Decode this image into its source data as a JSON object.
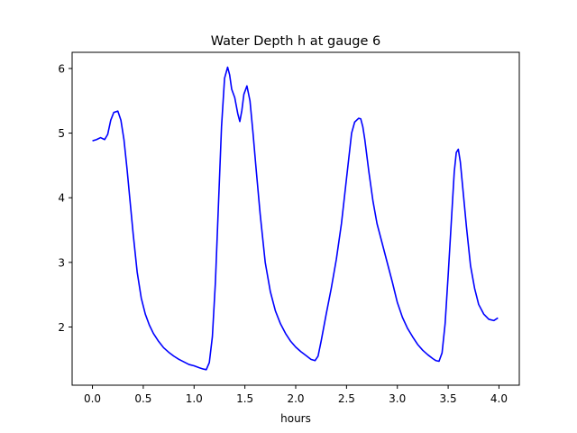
{
  "chart_data": {
    "type": "line",
    "title": "Water Depth h at gauge 6",
    "xlabel": "hours",
    "ylabel": "",
    "xlim": [
      -0.2,
      4.2
    ],
    "ylim": [
      1.1,
      6.25
    ],
    "xticks": [
      0.0,
      0.5,
      1.0,
      1.5,
      2.0,
      2.5,
      3.0,
      3.5,
      4.0
    ],
    "xtick_labels": [
      "0.0",
      "0.5",
      "1.0",
      "1.5",
      "2.0",
      "2.5",
      "3.0",
      "3.5",
      "4.0"
    ],
    "yticks": [
      2,
      3,
      4,
      5,
      6
    ],
    "ytick_labels": [
      "2",
      "3",
      "4",
      "5",
      "6"
    ],
    "grid": false,
    "series": [
      {
        "color": "#0000ff",
        "x": [
          0.0,
          0.04,
          0.08,
          0.12,
          0.15,
          0.18,
          0.21,
          0.25,
          0.28,
          0.31,
          0.34,
          0.37,
          0.4,
          0.44,
          0.48,
          0.52,
          0.56,
          0.6,
          0.65,
          0.7,
          0.75,
          0.8,
          0.85,
          0.9,
          0.95,
          1.0,
          1.05,
          1.09,
          1.12,
          1.15,
          1.18,
          1.21,
          1.24,
          1.27,
          1.3,
          1.33,
          1.35,
          1.37,
          1.4,
          1.43,
          1.45,
          1.47,
          1.49,
          1.52,
          1.55,
          1.58,
          1.61,
          1.65,
          1.7,
          1.75,
          1.8,
          1.85,
          1.9,
          1.95,
          2.0,
          2.05,
          2.1,
          2.15,
          2.19,
          2.22,
          2.25,
          2.3,
          2.35,
          2.4,
          2.45,
          2.5,
          2.55,
          2.58,
          2.6,
          2.62,
          2.64,
          2.66,
          2.68,
          2.72,
          2.76,
          2.8,
          2.85,
          2.9,
          2.95,
          3.0,
          3.05,
          3.1,
          3.15,
          3.2,
          3.25,
          3.3,
          3.35,
          3.38,
          3.41,
          3.44,
          3.47,
          3.5,
          3.53,
          3.56,
          3.58,
          3.6,
          3.62,
          3.65,
          3.68,
          3.72,
          3.76,
          3.8,
          3.85,
          3.9,
          3.95,
          3.99
        ],
        "y": [
          4.88,
          4.9,
          4.93,
          4.9,
          4.98,
          5.2,
          5.32,
          5.34,
          5.2,
          4.9,
          4.45,
          3.95,
          3.45,
          2.85,
          2.45,
          2.2,
          2.03,
          1.9,
          1.78,
          1.68,
          1.61,
          1.55,
          1.5,
          1.46,
          1.42,
          1.4,
          1.37,
          1.35,
          1.34,
          1.45,
          1.85,
          2.7,
          3.9,
          5.1,
          5.85,
          6.02,
          5.9,
          5.68,
          5.55,
          5.3,
          5.18,
          5.35,
          5.6,
          5.73,
          5.5,
          5.0,
          4.45,
          3.75,
          3.0,
          2.55,
          2.25,
          2.05,
          1.9,
          1.78,
          1.69,
          1.62,
          1.56,
          1.5,
          1.48,
          1.55,
          1.78,
          2.2,
          2.6,
          3.05,
          3.6,
          4.3,
          5.0,
          5.17,
          5.2,
          5.23,
          5.22,
          5.1,
          4.9,
          4.4,
          3.95,
          3.6,
          3.3,
          3.0,
          2.7,
          2.38,
          2.15,
          1.98,
          1.85,
          1.73,
          1.64,
          1.57,
          1.51,
          1.48,
          1.47,
          1.6,
          2.05,
          2.8,
          3.6,
          4.4,
          4.7,
          4.75,
          4.55,
          4.05,
          3.55,
          2.95,
          2.6,
          2.35,
          2.2,
          2.12,
          2.1,
          2.14
        ]
      }
    ]
  }
}
